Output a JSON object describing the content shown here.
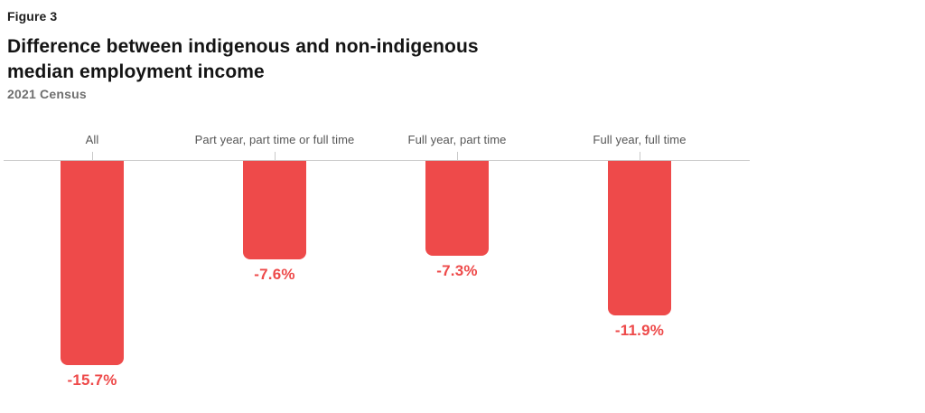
{
  "figure_label": "Figure 3",
  "title": "Difference between indigenous and non-indigenous median employment income",
  "title_line1": "Difference between indigenous and non-indigenous",
  "title_line2": "median employment income",
  "subtitle": "2021 Census",
  "colors": {
    "bar": "#ee4a4a",
    "value_label": "#ee4a4a",
    "category_label": "#565656",
    "axis": "#c9c9c9",
    "title": "#141414",
    "subtitle": "#6f6f6f"
  },
  "chart_data": {
    "type": "bar",
    "categories": [
      "All",
      "Part year, part time or full time",
      "Full year, part time",
      "Full year, full time"
    ],
    "values": [
      -15.7,
      -7.6,
      -7.3,
      -11.9
    ],
    "value_labels": [
      "-15.7%",
      "-7.6%",
      "-7.3%",
      "-11.9%"
    ],
    "title": "Difference between indigenous and non-indigenous median employment income",
    "subtitle": "2021 Census",
    "xlabel": "",
    "ylabel": "",
    "ylim": [
      -16.5,
      0
    ],
    "grid": false,
    "legend": false,
    "baseline": 0,
    "bar_orientation": "vertical-negative",
    "data_label_position": "below-bar"
  }
}
